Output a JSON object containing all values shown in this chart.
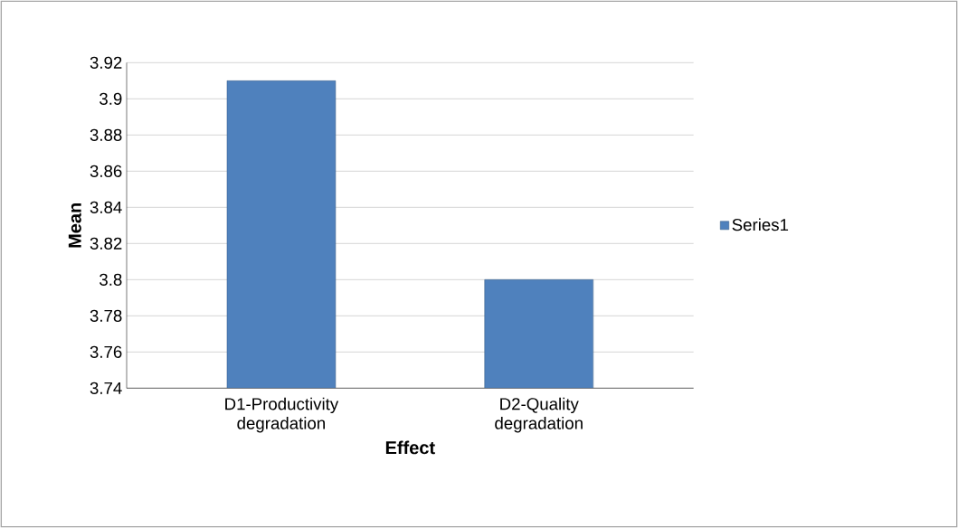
{
  "chart_data": {
    "type": "bar",
    "xlabel": "Effect",
    "ylabel": "Mean",
    "categories": [
      "D1-Productivity degradation",
      "D2-Quality degradation"
    ],
    "series": [
      {
        "name": "Series1",
        "color": "#4f81bd",
        "values": [
          3.91,
          3.8
        ]
      }
    ],
    "ylim": [
      3.74,
      3.92
    ],
    "yticks": [
      3.74,
      3.76,
      3.78,
      3.8,
      3.82,
      3.84,
      3.86,
      3.88,
      3.9,
      3.92
    ],
    "grid": "y",
    "legend": "right"
  }
}
